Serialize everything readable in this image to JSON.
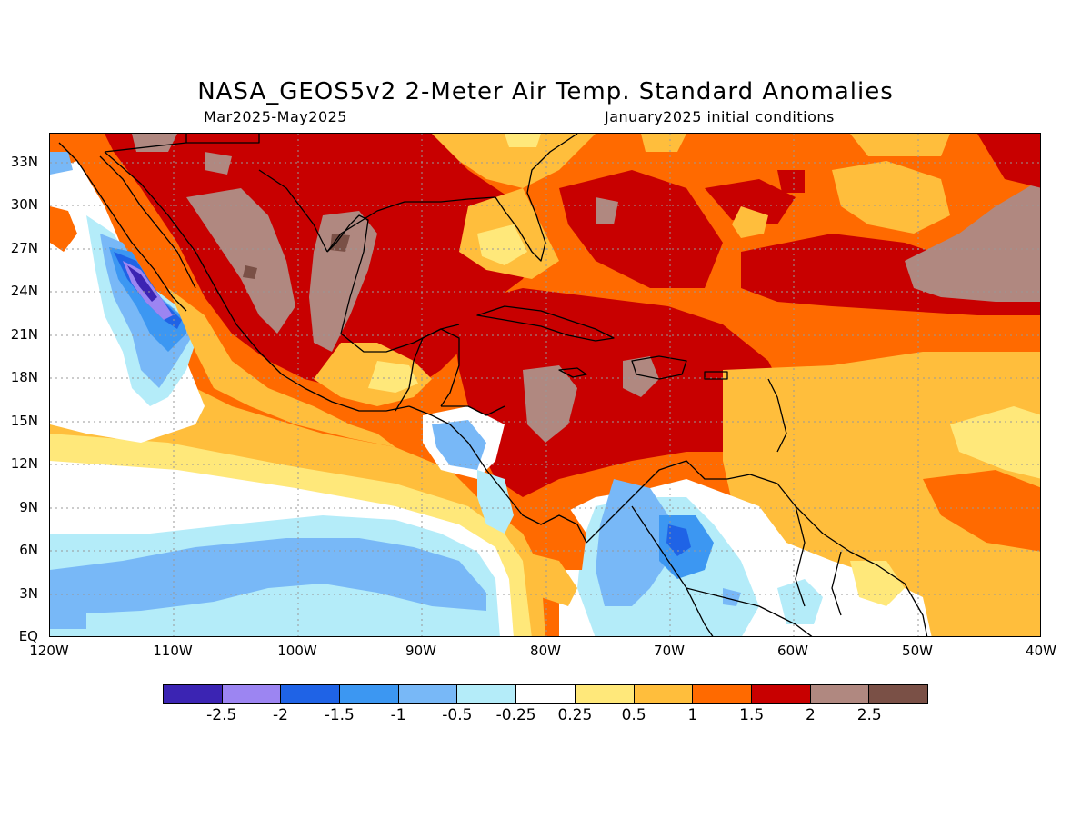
{
  "title": "NASA_GEOS5v2 2-Meter Air Temp. Standard Anomalies",
  "subtitle_left": "Mar2025-May2025",
  "subtitle_right": "January2025 initial conditions",
  "lat_labels": [
    "33N",
    "30N",
    "27N",
    "24N",
    "21N",
    "18N",
    "15N",
    "12N",
    "9N",
    "6N",
    "3N",
    "EQ"
  ],
  "lon_labels": [
    "120W",
    "110W",
    "100W",
    "90W",
    "80W",
    "70W",
    "60W",
    "50W",
    "40W"
  ],
  "colorbar": {
    "colors": [
      "#3b24b3",
      "#9c85f2",
      "#1f63e6",
      "#3c97f2",
      "#78b8f7",
      "#b4ecf9",
      "#ffffff",
      "#ffe87a",
      "#ffbe3c",
      "#ff6a00",
      "#c80000",
      "#b08880",
      "#7a5046"
    ],
    "labels": [
      "-2.5",
      "-2",
      "-1.5",
      "-1",
      "-0.5",
      "-0.25",
      "0.25",
      "0.5",
      "1",
      "1.5",
      "2",
      "2.5"
    ]
  }
}
